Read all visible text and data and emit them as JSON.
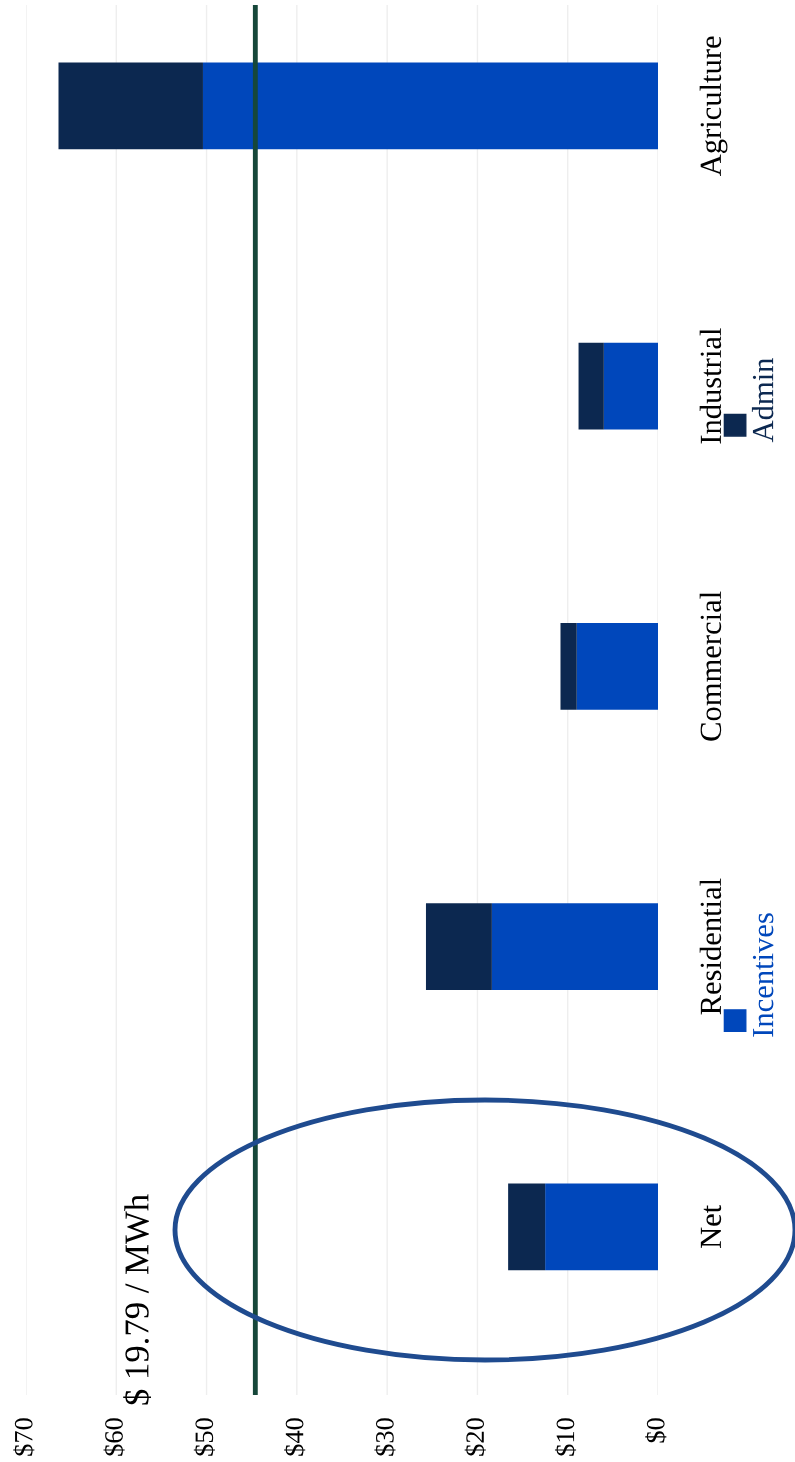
{
  "chart_data": {
    "type": "bar",
    "orientation": "horizontal",
    "stacked": true,
    "categories": [
      "Agriculture",
      "Industrial",
      "Commercial",
      "Residential",
      "Net"
    ],
    "series": [
      {
        "name": "Incentives",
        "color": "#0047bb",
        "values": [
          50.4,
          6,
          9,
          18.4,
          12.5
        ]
      },
      {
        "name": "Admin",
        "color": "#0c2850",
        "values": [
          16,
          2.8,
          1.8,
          7.3,
          4.1
        ]
      }
    ],
    "xlim": [
      70,
      0
    ],
    "xticks": [
      {
        "value": 70,
        "label": "$70"
      },
      {
        "value": 60,
        "label": "$60"
      },
      {
        "value": 50,
        "label": "$50"
      },
      {
        "value": 40,
        "label": "$40"
      },
      {
        "value": 30,
        "label": "$30"
      },
      {
        "value": 20,
        "label": "$20"
      },
      {
        "value": 10,
        "label": "$10"
      },
      {
        "value": 0,
        "label": "$0"
      }
    ],
    "ref_lines": [
      {
        "axis": "x",
        "value": 44.6,
        "color": "#16473a"
      }
    ],
    "annotations": [
      "$ 19.79 / MWh"
    ],
    "grid": "x",
    "legend": "right"
  }
}
